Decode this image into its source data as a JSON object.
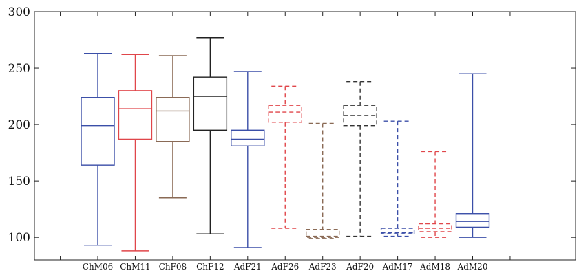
{
  "chart_data": {
    "type": "box",
    "categories": [
      "ChM06",
      "ChM11",
      "ChF08",
      "ChF12",
      "AdF21",
      "AdF26",
      "AdF23",
      "AdF20",
      "AdM17",
      "AdM18",
      "AdM20"
    ],
    "boxes": [
      {
        "min": 93,
        "q1": 164,
        "median": 199,
        "q3": 224,
        "max": 263,
        "color": "#3b4fa8",
        "dashed": false
      },
      {
        "min": 88,
        "q1": 187,
        "median": 214,
        "q3": 230,
        "max": 262,
        "color": "#e0464a",
        "dashed": false
      },
      {
        "min": 135,
        "q1": 185,
        "median": 212,
        "q3": 224,
        "max": 261,
        "color": "#8a6a55",
        "dashed": false
      },
      {
        "min": 103,
        "q1": 195,
        "median": 225,
        "q3": 242,
        "max": 277,
        "color": "#222222",
        "dashed": false
      },
      {
        "min": 91,
        "q1": 181,
        "median": 187,
        "q3": 195,
        "max": 247,
        "color": "#3b4fa8",
        "dashed": false
      },
      {
        "min": 108,
        "q1": 202,
        "median": 211,
        "q3": 217,
        "max": 234,
        "color": "#e0464a",
        "dashed": true
      },
      {
        "min": 99,
        "q1": 100,
        "median": 101,
        "q3": 107,
        "max": 201,
        "color": "#8a6a55",
        "dashed": true
      },
      {
        "min": 101,
        "q1": 199,
        "median": 208,
        "q3": 217,
        "max": 238,
        "color": "#333333",
        "dashed": true
      },
      {
        "min": 101,
        "q1": 103,
        "median": 104,
        "q3": 108,
        "max": 203,
        "color": "#3b4fa8",
        "dashed": true
      },
      {
        "min": 100,
        "q1": 105,
        "median": 108,
        "q3": 112,
        "max": 176,
        "color": "#e0464a",
        "dashed": true
      },
      {
        "min": 100,
        "q1": 109,
        "median": 114,
        "q3": 121,
        "max": 245,
        "color": "#3b4fa8",
        "dashed": false
      }
    ],
    "y_ticks": [
      100,
      150,
      200,
      250,
      300
    ],
    "ylim": [
      80,
      300
    ],
    "grid": false,
    "legend": "none"
  }
}
